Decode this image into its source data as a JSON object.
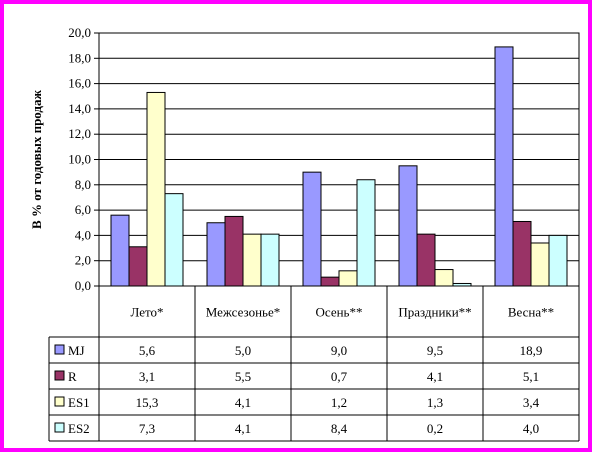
{
  "chart_data": {
    "type": "bar",
    "title": "",
    "xlabel": "",
    "ylabel": "В % от годовых продаж",
    "ylim": [
      0,
      20
    ],
    "y_step": 2,
    "y_tick_labels": [
      "0,0",
      "2,0",
      "4,0",
      "6,0",
      "8,0",
      "10,0",
      "12,0",
      "14,0",
      "16,0",
      "18,0",
      "20,0"
    ],
    "grid": true,
    "legend": "data-table",
    "categories": [
      "Лето*",
      "Межсезонье*",
      "Осень**",
      "Праздники**",
      "Весна**"
    ],
    "series": [
      {
        "name": "MJ",
        "color": "#9999ff",
        "values": [
          5.6,
          5.0,
          9.0,
          9.5,
          18.9
        ],
        "labels": [
          "5,6",
          "5,0",
          "9,0",
          "9,5",
          "18,9"
        ]
      },
      {
        "name": "R",
        "color": "#993366",
        "values": [
          3.1,
          5.5,
          0.7,
          4.1,
          5.1
        ],
        "labels": [
          "3,1",
          "5,5",
          "0,7",
          "4,1",
          "5,1"
        ]
      },
      {
        "name": "ES1",
        "color": "#ffffcc",
        "values": [
          15.3,
          4.1,
          1.2,
          1.3,
          3.4
        ],
        "labels": [
          "15,3",
          "4,1",
          "1,2",
          "1,3",
          "3,4"
        ]
      },
      {
        "name": "ES2",
        "color": "#ccffff",
        "values": [
          7.3,
          4.1,
          8.4,
          0.2,
          4.0
        ],
        "labels": [
          "7,3",
          "4,1",
          "8,4",
          "0,2",
          "4,0"
        ]
      }
    ]
  },
  "colors": {
    "frame_border": "#ff00ff",
    "plot_background": "#ffffff",
    "gridline": "#000000"
  }
}
